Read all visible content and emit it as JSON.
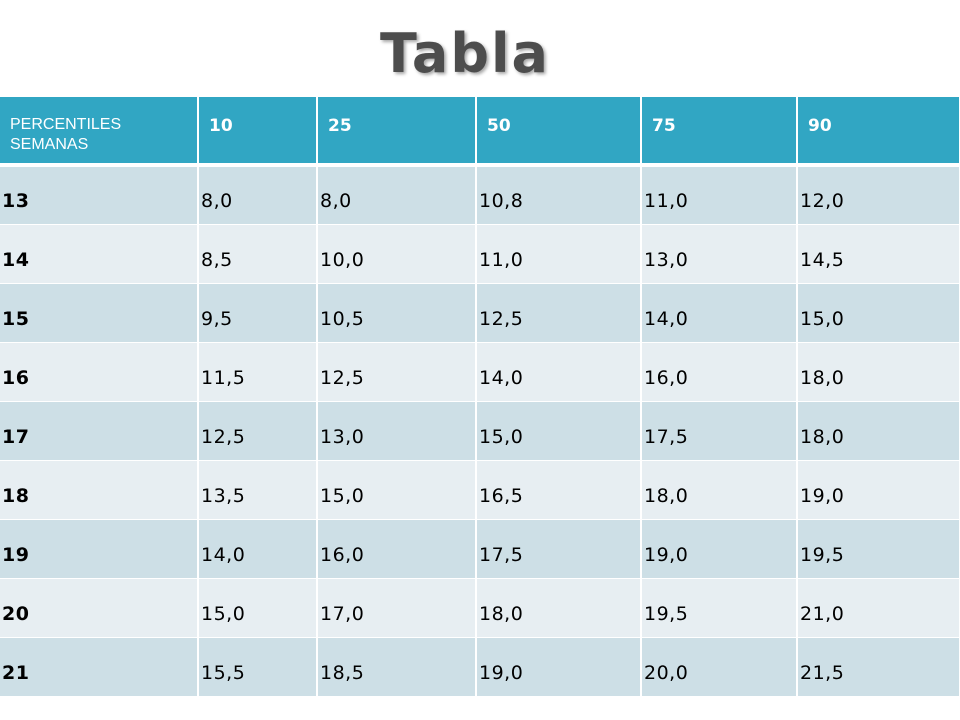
{
  "title": "Tabla",
  "table": {
    "header": {
      "first_line1": "PERCENTILES",
      "first_line2": "SEMANAS",
      "columns": [
        "10",
        "25",
        "50",
        "75",
        "90"
      ]
    },
    "rows": [
      {
        "week": "13",
        "values": [
          "8,0",
          "8,0",
          "10,8",
          "11,0",
          "12,0"
        ]
      },
      {
        "week": "14",
        "values": [
          "8,5",
          "10,0",
          "11,0",
          "13,0",
          "14,5"
        ]
      },
      {
        "week": "15",
        "values": [
          "9,5",
          "10,5",
          "12,5",
          "14,0",
          "15,0"
        ]
      },
      {
        "week": "16",
        "values": [
          "11,5",
          "12,5",
          "14,0",
          "16,0",
          "18,0"
        ]
      },
      {
        "week": "17",
        "values": [
          "12,5",
          "13,0",
          "15,0",
          "17,5",
          "18,0"
        ]
      },
      {
        "week": "18",
        "values": [
          "13,5",
          "15,0",
          "16,5",
          "18,0",
          "19,0"
        ]
      },
      {
        "week": "19",
        "values": [
          "14,0",
          "16,0",
          "17,5",
          "19,0",
          "19,5"
        ]
      },
      {
        "week": "20",
        "values": [
          "15,0",
          "17,0",
          "18,0",
          "19,5",
          "21,0"
        ]
      },
      {
        "week": "21",
        "values": [
          "15,5",
          "18,5",
          "19,0",
          "20,0",
          "21,5"
        ]
      }
    ]
  },
  "colors": {
    "header_bg": "#31a6c3",
    "row_odd_bg": "#cddfe6",
    "row_even_bg": "#e7eef2",
    "title_color": "#4d4d4d"
  }
}
